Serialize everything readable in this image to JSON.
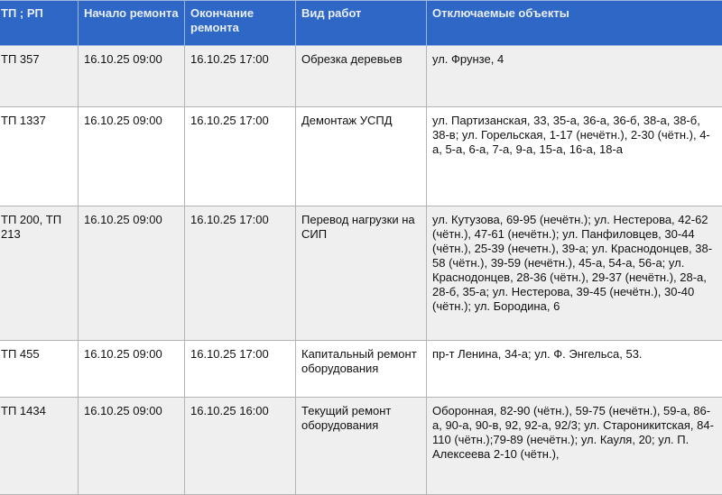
{
  "header": {
    "columns": [
      "ТП ; РП",
      "Начало ремонта",
      "Окончание ремонта",
      "Вид работ",
      "Отключаемые объекты"
    ],
    "header_color": "#2f67c6"
  },
  "rows": [
    {
      "tp": "ТП 357",
      "start": "16.10.25 09:00",
      "end": "16.10.25 17:00",
      "work": "Обрезка деревьев",
      "objects": "ул. Фрунзе, 4"
    },
    {
      "tp": "ТП 1337",
      "start": "16.10.25 09:00",
      "end": "16.10.25 17:00",
      "work": "Демонтаж УСПД",
      "objects": "ул. Партизанская, 33, 35-а, 36-а, 36-б, 38-а, 38-б, 38-в; ул. Горельская, 1-17 (нечётн.), 2-30 (чётн.), 4-а, 5-а, 6-а, 7-а, 9-а, 15-а, 16-а, 18-а"
    },
    {
      "tp": "ТП 200, ТП 213",
      "start": "16.10.25 09:00",
      "end": "16.10.25 17:00",
      "work": "Перевод нагрузки на СИП",
      "objects": "ул. Кутузова, 69-95 (нечётн.); ул. Нестерова, 42-62 (чётн.), 47-61 (нечётн.); ул. Панфиловцев, 30-44 (чётн.), 25-39 (нечетн.), 39-а; ул. Краснодонцев, 38-58 (чётн.), 39-59 (нечётн.), 45-а, 54-а, 56-а; ул. Краснодонцев, 28-36 (чётн.), 29-37 (нечётн.), 28-а, 28-б, 35-а; ул. Нестерова, 39-45 (нечётн.), 30-40 (чётн.); ул. Бородина, 6"
    },
    {
      "tp": "ТП 455",
      "start": "16.10.25 09:00",
      "end": "16.10.25 17:00",
      "work": "Капитальный ремонт оборудования",
      "objects": "пр-т Ленина, 34-а; ул. Ф. Энгельса, 53."
    },
    {
      "tp": "ТП 1434",
      "start": "16.10.25 09:00",
      "end": "16.10.25 16:00",
      "work": "Текущий ремонт оборудования",
      "objects": "Оборонная, 82-90 (чётн.), 59-75 (нечётн.), 59-а, 86-а, 90-а, 90-в, 92, 92-а, 92/3; ул. Староникитская, 84-110 (чётн.);79-89 (нечётн.); ул. Кауля, 20; ул. П. Алексеева 2-10 (чётн.),"
    }
  ]
}
